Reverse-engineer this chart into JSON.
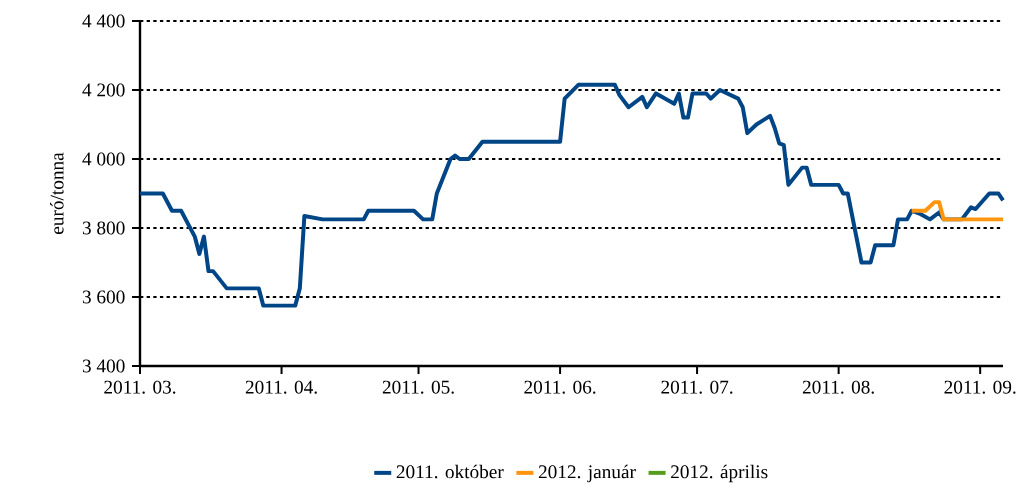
{
  "chart_data": {
    "type": "line",
    "ylabel": "euró/tonna",
    "xlim": [
      "2011-03-01",
      "2011-09-06"
    ],
    "ylim": [
      3400,
      4400
    ],
    "xticks": [
      {
        "value": "2011-03-01",
        "label": "2011. 03."
      },
      {
        "value": "2011-04-01",
        "label": "2011. 04."
      },
      {
        "value": "2011-05-01",
        "label": "2011. 05."
      },
      {
        "value": "2011-06-01",
        "label": "2011. 06."
      },
      {
        "value": "2011-07-01",
        "label": "2011. 07."
      },
      {
        "value": "2011-08-01",
        "label": "2011. 08."
      },
      {
        "value": "2011-09-01",
        "label": "2011. 09."
      }
    ],
    "yticks": [
      {
        "value": 3400,
        "label": "3 400"
      },
      {
        "value": 3600,
        "label": "3 600"
      },
      {
        "value": 3800,
        "label": "3 800"
      },
      {
        "value": 4000,
        "label": "4 000"
      },
      {
        "value": 4200,
        "label": "4 200"
      },
      {
        "value": 4400,
        "label": "4 400"
      }
    ],
    "grid": "y",
    "legend": "bottom",
    "series": [
      {
        "name": "2011. október",
        "color": "#004586",
        "x": [
          "2011-03-01",
          "2011-03-06",
          "2011-03-08",
          "2011-03-10",
          "2011-03-13",
          "2011-03-14",
          "2011-03-15",
          "2011-03-16",
          "2011-03-17",
          "2011-03-20",
          "2011-03-27",
          "2011-03-28",
          "2011-04-04",
          "2011-04-05",
          "2011-04-06",
          "2011-04-10",
          "2011-04-19",
          "2011-04-20",
          "2011-04-30",
          "2011-05-02",
          "2011-05-04",
          "2011-05-05",
          "2011-05-08",
          "2011-05-09",
          "2011-05-10",
          "2011-05-12",
          "2011-05-15",
          "2011-06-01",
          "2011-06-02",
          "2011-06-05",
          "2011-06-13",
          "2011-06-14",
          "2011-06-16",
          "2011-06-19",
          "2011-06-20",
          "2011-06-22",
          "2011-06-26",
          "2011-06-27",
          "2011-06-28",
          "2011-06-29",
          "2011-06-30",
          "2011-07-03",
          "2011-07-04",
          "2011-07-06",
          "2011-07-10",
          "2011-07-11",
          "2011-07-12",
          "2011-07-14",
          "2011-07-17",
          "2011-07-18",
          "2011-07-19",
          "2011-07-20",
          "2011-07-21",
          "2011-07-24",
          "2011-07-25",
          "2011-07-26",
          "2011-08-01",
          "2011-08-02",
          "2011-08-03",
          "2011-08-06",
          "2011-08-08",
          "2011-08-09",
          "2011-08-13",
          "2011-08-14",
          "2011-08-16",
          "2011-08-17",
          "2011-08-19",
          "2011-08-21",
          "2011-08-23",
          "2011-08-24",
          "2011-08-28",
          "2011-08-30",
          "2011-08-31",
          "2011-09-03",
          "2011-09-05",
          "2011-09-06"
        ],
        "values": [
          3900,
          3900,
          3850,
          3850,
          3775,
          3725,
          3775,
          3675,
          3675,
          3625,
          3625,
          3575,
          3575,
          3625,
          3835,
          3825,
          3825,
          3850,
          3850,
          3825,
          3825,
          3900,
          4000,
          4010,
          4000,
          4000,
          4050,
          4050,
          4175,
          4215,
          4215,
          4185,
          4150,
          4180,
          4150,
          4190,
          4160,
          4190,
          4120,
          4120,
          4190,
          4190,
          4175,
          4200,
          4175,
          4150,
          4075,
          4100,
          4125,
          4090,
          4045,
          4040,
          3925,
          3975,
          3975,
          3925,
          3925,
          3900,
          3900,
          3700,
          3700,
          3750,
          3750,
          3825,
          3825,
          3850,
          3840,
          3825,
          3845,
          3825,
          3825,
          3860,
          3855,
          3900,
          3900,
          3880
        ]
      },
      {
        "name": "2012. január",
        "color": "#ff950e",
        "x": [
          "2011-08-17",
          "2011-08-20",
          "2011-08-22",
          "2011-08-23",
          "2011-08-24",
          "2011-09-06"
        ],
        "values": [
          3850,
          3850,
          3875,
          3875,
          3825,
          3825
        ]
      },
      {
        "name": "2012. április",
        "color": "#579d1c"
      }
    ]
  }
}
